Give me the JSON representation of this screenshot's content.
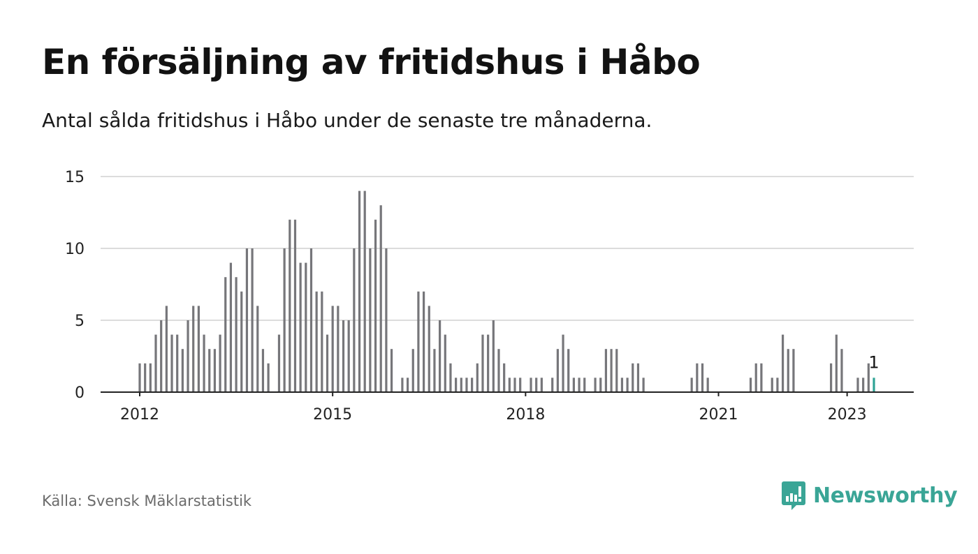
{
  "title": "En försäljning av fritidshus i Håbo",
  "subtitle": "Antal sålda fritidshus i Håbo under de senaste tre månaderna.",
  "source": "Källa: Svensk Mäklarstatistik",
  "brand": "Newsworthy",
  "colors": {
    "bar": "#76767a",
    "highlight": "#2fa395",
    "grid": "#dcdcdc",
    "brand": "#3aa596"
  },
  "chart_data": {
    "type": "bar",
    "title": "",
    "xlabel": "",
    "ylabel": "",
    "ylim": [
      0,
      15
    ],
    "yticks": [
      0,
      5,
      10,
      15
    ],
    "xticks": [
      "2012",
      "2015",
      "2018",
      "2021",
      "2023"
    ],
    "highlight_label": "1",
    "start": "2012-01",
    "end": "2023-01",
    "grid": true,
    "values": [
      2,
      2,
      2,
      4,
      5,
      6,
      4,
      4,
      3,
      5,
      6,
      6,
      4,
      3,
      3,
      4,
      8,
      9,
      8,
      7,
      10,
      10,
      6,
      3,
      2,
      0,
      4,
      10,
      12,
      12,
      9,
      9,
      10,
      7,
      7,
      4,
      6,
      6,
      5,
      5,
      10,
      14,
      14,
      10,
      12,
      13,
      10,
      3,
      0,
      1,
      1,
      3,
      7,
      7,
      6,
      3,
      5,
      4,
      2,
      1,
      1,
      1,
      1,
      2,
      4,
      4,
      5,
      3,
      2,
      1,
      1,
      1,
      0,
      1,
      1,
      1,
      0,
      1,
      3,
      4,
      3,
      1,
      1,
      1,
      0,
      1,
      1,
      3,
      3,
      3,
      1,
      1,
      2,
      2,
      1,
      0,
      0,
      0,
      0,
      0,
      0,
      0,
      0,
      1,
      2,
      2,
      1,
      0,
      0,
      0,
      0,
      0,
      0,
      0,
      1,
      2,
      2,
      0,
      1,
      1,
      4,
      3,
      3,
      0,
      0,
      0,
      0,
      0,
      0,
      2,
      4,
      3,
      0,
      0,
      1,
      1,
      2,
      1
    ]
  }
}
